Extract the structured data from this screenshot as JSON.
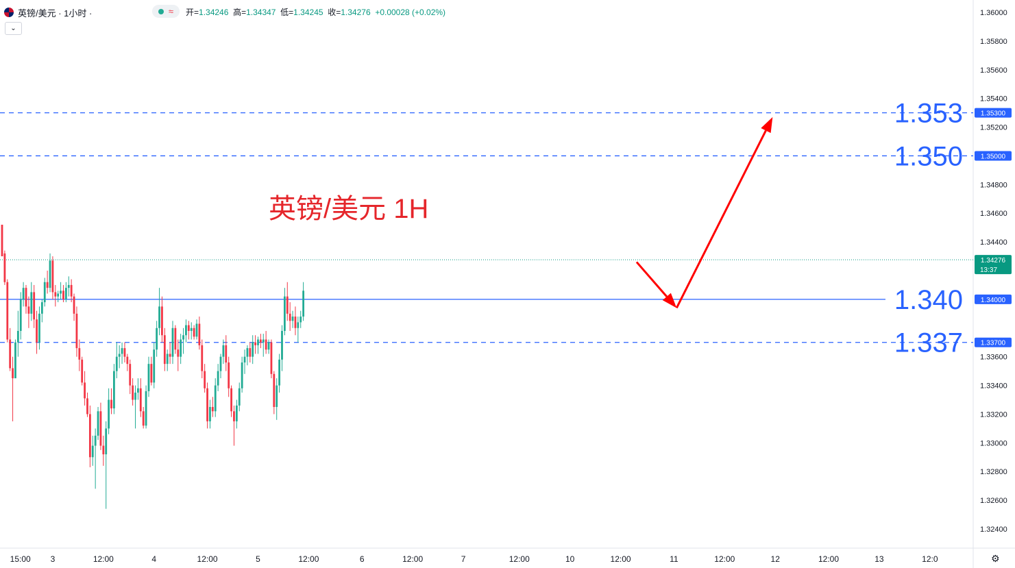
{
  "header": {
    "symbol_title": "英镑/美元 · 1小时 ·",
    "open_label": "开=",
    "open_value": "1.34246",
    "high_label": "高=",
    "high_value": "1.34347",
    "low_label": "低=",
    "low_value": "1.34245",
    "close_label": "收=",
    "close_value": "1.34276",
    "change_value": "+0.00028 (+0.02%)",
    "status_icons": [
      "live-dot-icon",
      "wave-icon"
    ],
    "collapse_icon": "chevron-down-icon",
    "settings_icon": "gear-icon"
  },
  "colors": {
    "up": "#22ab94",
    "down": "#f23645",
    "level_line": "#2962ff",
    "big_level_text": "#2962ff",
    "annotation": "#e5262b",
    "arrow": "#ff0000",
    "last_price_badge": "#089981"
  },
  "chart_data": {
    "type": "candlestick",
    "title": "英镑/美元 1H",
    "y_axis": {
      "min": 1.324,
      "max": 1.36,
      "ticks": [
        "1.36000",
        "1.35800",
        "1.35600",
        "1.35400",
        "1.35200",
        "1.34800",
        "1.34600",
        "1.34400",
        "1.33600",
        "1.33400",
        "1.33200",
        "1.33000",
        "1.32800",
        "1.32600",
        "1.32400"
      ]
    },
    "x_axis": {
      "labels": [
        {
          "text": "15:00",
          "bar": 3
        },
        {
          "text": "3",
          "bar": 19
        },
        {
          "text": "12:00",
          "bar": 38
        },
        {
          "text": "4",
          "bar": 57
        },
        {
          "text": "12:00",
          "bar": 77
        },
        {
          "text": "5",
          "bar": 96
        },
        {
          "text": "12:00",
          "bar": 115
        },
        {
          "text": "6",
          "bar": 135
        },
        {
          "text": "12:00",
          "bar": 154
        },
        {
          "text": "7",
          "bar": 173
        },
        {
          "text": "12:00",
          "bar": 194
        },
        {
          "text": "10",
          "bar": 213
        },
        {
          "text": "12:00",
          "bar": 232
        },
        {
          "text": "11",
          "bar": 252
        },
        {
          "text": "12:00",
          "bar": 271
        },
        {
          "text": "12",
          "bar": 290
        },
        {
          "text": "12:00",
          "bar": 310
        },
        {
          "text": "13",
          "bar": 329
        },
        {
          "text": "12:0",
          "bar": 348
        }
      ],
      "total_slots": 365
    },
    "horizontal_levels": [
      {
        "value": 1.353,
        "label": "1.353",
        "badge": "1.35300",
        "style": "dashed"
      },
      {
        "value": 1.35,
        "label": "1.350",
        "badge": "1.35000",
        "style": "dashed"
      },
      {
        "value": 1.34,
        "label": "1.340",
        "badge": "1.34000",
        "style": "solid"
      },
      {
        "value": 1.337,
        "label": "1.337",
        "badge": "1.33700",
        "style": "dashed"
      }
    ],
    "last_price": {
      "value": 1.34276,
      "label": "1.34276",
      "countdown": "13:37"
    },
    "forecast_path": [
      {
        "bar": 238,
        "price": 1.3426
      },
      {
        "bar": 253,
        "price": 1.3394
      },
      {
        "bar": 289,
        "price": 1.3527
      }
    ],
    "candles": [
      [
        1.3452,
        1.345,
        1.343,
        1.343
      ],
      [
        1.3432,
        1.3434,
        1.341,
        1.3412
      ],
      [
        1.3412,
        1.3414,
        1.337,
        1.3372
      ],
      [
        1.3372,
        1.338,
        1.335,
        1.3352
      ],
      [
        1.3352,
        1.336,
        1.3315,
        1.3345
      ],
      [
        1.3345,
        1.3372,
        1.3345,
        1.337
      ],
      [
        1.337,
        1.3392,
        1.336,
        1.3378
      ],
      [
        1.3378,
        1.3405,
        1.3372,
        1.34
      ],
      [
        1.34,
        1.3412,
        1.3395,
        1.3408
      ],
      [
        1.3408,
        1.341,
        1.339,
        1.3395
      ],
      [
        1.3395,
        1.3402,
        1.338,
        1.339
      ],
      [
        1.339,
        1.3412,
        1.3385,
        1.3405
      ],
      [
        1.3405,
        1.341,
        1.338,
        1.3386
      ],
      [
        1.3386,
        1.3392,
        1.3362,
        1.337
      ],
      [
        1.337,
        1.3395,
        1.3365,
        1.339
      ],
      [
        1.339,
        1.34,
        1.3384,
        1.3398
      ],
      [
        1.3398,
        1.3415,
        1.3395,
        1.3412
      ],
      [
        1.3412,
        1.342,
        1.3404,
        1.3408
      ],
      [
        1.3408,
        1.3432,
        1.3405,
        1.3427
      ],
      [
        1.3427,
        1.343,
        1.34,
        1.3405
      ],
      [
        1.3405,
        1.341,
        1.3395,
        1.3402
      ],
      [
        1.3402,
        1.3406,
        1.3398,
        1.3404
      ],
      [
        1.3404,
        1.3412,
        1.34,
        1.3406
      ],
      [
        1.3406,
        1.341,
        1.3398,
        1.34
      ],
      [
        1.34,
        1.3412,
        1.3398,
        1.3408
      ],
      [
        1.3408,
        1.3416,
        1.3402,
        1.341
      ],
      [
        1.341,
        1.3414,
        1.3398,
        1.3402
      ],
      [
        1.3402,
        1.3404,
        1.3385,
        1.339
      ],
      [
        1.339,
        1.3395,
        1.336,
        1.3366
      ],
      [
        1.3366,
        1.3372,
        1.335,
        1.3358
      ],
      [
        1.3358,
        1.336,
        1.334,
        1.3342
      ],
      [
        1.3342,
        1.335,
        1.3326,
        1.3331
      ],
      [
        1.3331,
        1.3335,
        1.3318,
        1.332
      ],
      [
        1.332,
        1.3326,
        1.3283,
        1.329
      ],
      [
        1.329,
        1.3305,
        1.3284,
        1.3298
      ],
      [
        1.3298,
        1.331,
        1.3268,
        1.3305
      ],
      [
        1.3305,
        1.3325,
        1.3302,
        1.3322
      ],
      [
        1.3322,
        1.3328,
        1.3295,
        1.3298
      ],
      [
        1.3298,
        1.3305,
        1.3284,
        1.3292
      ],
      [
        1.3292,
        1.3315,
        1.3254,
        1.331
      ],
      [
        1.331,
        1.3338,
        1.3306,
        1.333
      ],
      [
        1.333,
        1.3338,
        1.332,
        1.3324
      ],
      [
        1.3324,
        1.3355,
        1.332,
        1.335
      ],
      [
        1.335,
        1.337,
        1.3345,
        1.336
      ],
      [
        1.336,
        1.3368,
        1.3352,
        1.3362
      ],
      [
        1.3362,
        1.337,
        1.3355,
        1.3366
      ],
      [
        1.3366,
        1.337,
        1.3356,
        1.336
      ],
      [
        1.336,
        1.3362,
        1.335,
        1.3355
      ],
      [
        1.3355,
        1.3358,
        1.3334,
        1.334
      ],
      [
        1.334,
        1.3345,
        1.3326,
        1.333
      ],
      [
        1.333,
        1.334,
        1.331,
        1.3335
      ],
      [
        1.3335,
        1.3345,
        1.333,
        1.3338
      ],
      [
        1.3338,
        1.3345,
        1.3318,
        1.3322
      ],
      [
        1.3322,
        1.3325,
        1.331,
        1.3312
      ],
      [
        1.3312,
        1.334,
        1.331,
        1.3336
      ],
      [
        1.3336,
        1.336,
        1.3332,
        1.3355
      ],
      [
        1.3355,
        1.336,
        1.334,
        1.3342
      ],
      [
        1.3342,
        1.337,
        1.3338,
        1.3365
      ],
      [
        1.3365,
        1.3385,
        1.336,
        1.338
      ],
      [
        1.338,
        1.3408,
        1.3375,
        1.3395
      ],
      [
        1.3395,
        1.3402,
        1.337,
        1.3375
      ],
      [
        1.3375,
        1.338,
        1.335,
        1.3355
      ],
      [
        1.3355,
        1.3365,
        1.335,
        1.3362
      ],
      [
        1.3362,
        1.337,
        1.3355,
        1.336
      ],
      [
        1.336,
        1.3385,
        1.3355,
        1.338
      ],
      [
        1.338,
        1.3382,
        1.3362,
        1.3365
      ],
      [
        1.3365,
        1.3372,
        1.335,
        1.336
      ],
      [
        1.336,
        1.3376,
        1.3355,
        1.3372
      ],
      [
        1.3372,
        1.338,
        1.3362,
        1.3375
      ],
      [
        1.3375,
        1.3386,
        1.337,
        1.3382
      ],
      [
        1.3382,
        1.3385,
        1.3372,
        1.3378
      ],
      [
        1.3378,
        1.3384,
        1.3372,
        1.338
      ],
      [
        1.338,
        1.3382,
        1.3372,
        1.3374
      ],
      [
        1.3374,
        1.3386,
        1.3372,
        1.3383
      ],
      [
        1.3383,
        1.3388,
        1.3365,
        1.3368
      ],
      [
        1.3368,
        1.3372,
        1.3345,
        1.335
      ],
      [
        1.335,
        1.3355,
        1.3335,
        1.3338
      ],
      [
        1.3338,
        1.3342,
        1.331,
        1.3315
      ],
      [
        1.3315,
        1.333,
        1.331,
        1.3325
      ],
      [
        1.3325,
        1.3332,
        1.3318,
        1.3322
      ],
      [
        1.3322,
        1.3345,
        1.3318,
        1.334
      ],
      [
        1.334,
        1.3355,
        1.3336,
        1.335
      ],
      [
        1.335,
        1.3362,
        1.3345,
        1.336
      ],
      [
        1.336,
        1.3372,
        1.3355,
        1.3368
      ],
      [
        1.3368,
        1.3375,
        1.335,
        1.3356
      ],
      [
        1.3356,
        1.336,
        1.3332,
        1.3338
      ],
      [
        1.3338,
        1.334,
        1.3318,
        1.3322
      ],
      [
        1.3322,
        1.3326,
        1.3298,
        1.3315
      ],
      [
        1.3315,
        1.333,
        1.331,
        1.3326
      ],
      [
        1.3326,
        1.3342,
        1.3322,
        1.3338
      ],
      [
        1.3338,
        1.336,
        1.3335,
        1.3356
      ],
      [
        1.3356,
        1.3365,
        1.3348,
        1.336
      ],
      [
        1.336,
        1.3368,
        1.3354,
        1.3366
      ],
      [
        1.3366,
        1.337,
        1.3356,
        1.336
      ],
      [
        1.336,
        1.3375,
        1.3355,
        1.337
      ],
      [
        1.337,
        1.3375,
        1.3362,
        1.3368
      ],
      [
        1.3368,
        1.3374,
        1.3362,
        1.3372
      ],
      [
        1.3372,
        1.3376,
        1.3366,
        1.337
      ],
      [
        1.337,
        1.3376,
        1.336,
        1.3372
      ],
      [
        1.3372,
        1.3378,
        1.3362,
        1.3365
      ],
      [
        1.3365,
        1.3372,
        1.3362,
        1.337
      ],
      [
        1.337,
        1.3372,
        1.3345,
        1.3348
      ],
      [
        1.3348,
        1.335,
        1.332,
        1.3325
      ],
      [
        1.3325,
        1.3345,
        1.3316,
        1.334
      ],
      [
        1.334,
        1.3362,
        1.3335,
        1.3358
      ],
      [
        1.3358,
        1.3382,
        1.335,
        1.3378
      ],
      [
        1.3378,
        1.3408,
        1.3375,
        1.3402
      ],
      [
        1.3402,
        1.3412,
        1.3385,
        1.339
      ],
      [
        1.339,
        1.3398,
        1.3378,
        1.3385
      ],
      [
        1.3385,
        1.3392,
        1.338,
        1.3388
      ],
      [
        1.3388,
        1.3395,
        1.3375,
        1.338
      ],
      [
        1.338,
        1.3388,
        1.337,
        1.3384
      ],
      [
        1.3384,
        1.3392,
        1.338,
        1.3388
      ],
      [
        1.3388,
        1.3412,
        1.3385,
        1.3406
      ]
    ]
  }
}
